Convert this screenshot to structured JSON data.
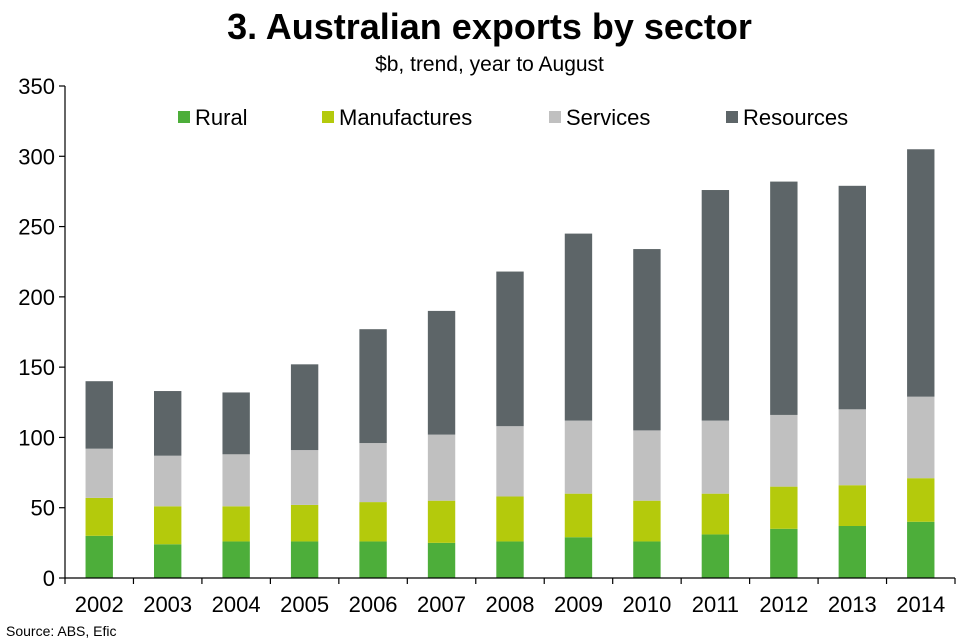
{
  "chart_data": {
    "type": "bar",
    "stacked": true,
    "title": "3. Australian exports by sector",
    "subtitle": "$b, trend, year to August",
    "source": "Source: ABS, Efic",
    "categories": [
      "2002",
      "2003",
      "2004",
      "2005",
      "2006",
      "2007",
      "2008",
      "2009",
      "2010",
      "2011",
      "2012",
      "2013",
      "2014"
    ],
    "series": [
      {
        "name": "Rural",
        "color": "#4dae3a",
        "values": [
          30,
          24,
          26,
          26,
          26,
          25,
          26,
          29,
          26,
          31,
          35,
          37,
          40
        ]
      },
      {
        "name": "Manufactures",
        "color": "#b4ca0c",
        "values": [
          27,
          27,
          25,
          26,
          28,
          30,
          32,
          31,
          29,
          29,
          30,
          29,
          31
        ]
      },
      {
        "name": "Services",
        "color": "#c0c0c0",
        "values": [
          35,
          36,
          37,
          39,
          42,
          47,
          50,
          52,
          50,
          52,
          51,
          54,
          58
        ]
      },
      {
        "name": "Resources",
        "color": "#5d6568",
        "values": [
          48,
          46,
          44,
          61,
          81,
          88,
          110,
          133,
          129,
          164,
          166,
          159,
          176
        ]
      }
    ],
    "ylim": [
      0,
      350
    ],
    "yticks": [
      0,
      50,
      100,
      150,
      200,
      250,
      300,
      350
    ],
    "ytick_labels": [
      "0",
      "50",
      "100",
      "150",
      "200",
      "250",
      "300",
      "350"
    ],
    "xlabel": "",
    "ylabel": "",
    "legend_position": "top",
    "grid": false
  }
}
